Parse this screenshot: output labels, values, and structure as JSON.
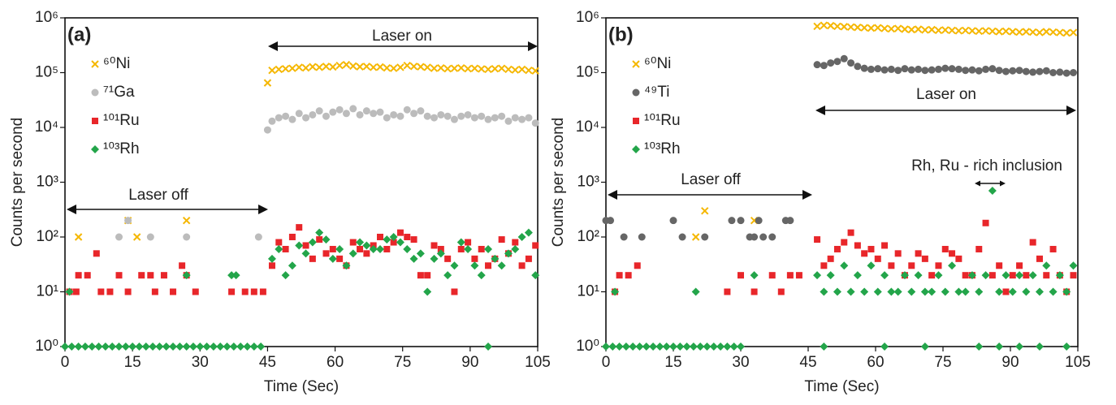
{
  "chart_data": [
    {
      "type": "scatter",
      "panel_label": "(a)",
      "xlabel": "Time (Sec)",
      "ylabel": "Counts per second",
      "annotations": [
        "Laser on",
        "Laser off"
      ],
      "xlim": [
        0,
        105
      ],
      "xticks": [
        0,
        15,
        30,
        45,
        60,
        75,
        90,
        105
      ],
      "ylim": [
        1,
        1000000
      ],
      "yscale": "log",
      "legend": "upper left",
      "yticks": [
        {
          "value": 1,
          "label": "10⁰"
        },
        {
          "value": 10,
          "label": "10¹"
        },
        {
          "value": 100,
          "label": "10²"
        },
        {
          "value": 1000,
          "label": "10³"
        },
        {
          "value": 10000,
          "label": "10⁴"
        },
        {
          "value": 100000,
          "label": "10⁵"
        },
        {
          "value": 1000000,
          "label": "10⁶"
        }
      ],
      "series": [
        {
          "name": "⁶⁰Ni",
          "color": "#f5b700",
          "marker": "x",
          "x": [
            3,
            14,
            16,
            27,
            45,
            46,
            47.5,
            49,
            50.5,
            52,
            53.5,
            55,
            56.5,
            58,
            59.5,
            61,
            62.5,
            64,
            65.5,
            67,
            68.5,
            70,
            71.5,
            73,
            74.5,
            76,
            77.5,
            79,
            80.5,
            82,
            83.5,
            85,
            86.5,
            88,
            89.5,
            91,
            92.5,
            94,
            95.5,
            97,
            98.5,
            100,
            101.5,
            103,
            104.5
          ],
          "values": [
            100,
            200,
            100,
            200,
            65000,
            110000,
            115000,
            118000,
            120000,
            125000,
            122000,
            128000,
            125000,
            130000,
            127000,
            135000,
            140000,
            132000,
            128000,
            130000,
            125000,
            127000,
            122000,
            120000,
            125000,
            135000,
            130000,
            128000,
            125000,
            120000,
            122000,
            118000,
            120000,
            122000,
            118000,
            120000,
            117000,
            115000,
            118000,
            120000,
            115000,
            112000,
            115000,
            110000,
            108000
          ]
        },
        {
          "name": "⁷¹Ga",
          "color": "#bcbcbc",
          "marker": "circle",
          "x": [
            12,
            14,
            19,
            27,
            43,
            45,
            46,
            47.5,
            49,
            50.5,
            52,
            53.5,
            55,
            56.5,
            58,
            59.5,
            61,
            62.5,
            64,
            65.5,
            67,
            68.5,
            70,
            71.5,
            73,
            74.5,
            76,
            77.5,
            79,
            80.5,
            82,
            83.5,
            85,
            86.5,
            88,
            89.5,
            91,
            92.5,
            94,
            95.5,
            97,
            98.5,
            100,
            101.5,
            103,
            104.5
          ],
          "values": [
            100,
            200,
            100,
            100,
            100,
            9000,
            13000,
            15000,
            16000,
            14000,
            18000,
            15000,
            17000,
            20000,
            16000,
            19000,
            21000,
            18000,
            22000,
            17000,
            20000,
            18000,
            19000,
            15000,
            17000,
            16000,
            21000,
            18000,
            20000,
            16000,
            15000,
            17000,
            16000,
            14000,
            16000,
            17000,
            15000,
            16000,
            14000,
            15000,
            16000,
            13000,
            15000,
            14000,
            15000,
            12000
          ]
        },
        {
          "name": "¹⁰¹Ru",
          "color": "#e8262a",
          "marker": "square",
          "x": [
            1,
            2.5,
            3,
            5,
            7,
            8,
            10,
            12,
            14,
            17,
            19,
            20,
            22,
            24,
            26,
            27,
            29,
            37,
            40,
            42,
            44,
            46,
            47.5,
            49,
            50.5,
            52,
            53.5,
            55,
            56.5,
            58,
            59.5,
            61,
            62.5,
            64,
            65.5,
            67,
            68.5,
            70,
            71.5,
            73,
            74.5,
            76,
            77.5,
            79,
            80.5,
            82,
            83.5,
            85,
            86.5,
            88,
            89.5,
            91,
            92.5,
            94,
            95.5,
            97,
            98.5,
            100,
            101.5,
            103,
            104.5
          ],
          "values": [
            10,
            10,
            20,
            20,
            50,
            10,
            10,
            20,
            10,
            20,
            20,
            10,
            20,
            10,
            30,
            20,
            10,
            10,
            10,
            10,
            10,
            30,
            80,
            60,
            100,
            150,
            70,
            40,
            90,
            50,
            60,
            40,
            30,
            80,
            60,
            50,
            70,
            100,
            60,
            80,
            120,
            100,
            90,
            20,
            20,
            70,
            60,
            40,
            10,
            60,
            80,
            40,
            60,
            30,
            40,
            90,
            50,
            80,
            30,
            40,
            70
          ]
        },
        {
          "name": "¹⁰³Rh",
          "color": "#23a54a",
          "marker": "diamond",
          "x": [
            0,
            1.5,
            3,
            4.5,
            6,
            7.5,
            9,
            10.5,
            12,
            13.5,
            15,
            16.5,
            18,
            19.5,
            21,
            22.5,
            24,
            25.5,
            27,
            28.5,
            30,
            31.5,
            33,
            34.5,
            36,
            37.5,
            39,
            40.5,
            42,
            43.5,
            1,
            27,
            37,
            38,
            46,
            47.5,
            49,
            50.5,
            52,
            53.5,
            55,
            56.5,
            58,
            59.5,
            61,
            62.5,
            64,
            65.5,
            67,
            68.5,
            70,
            71.5,
            73,
            74.5,
            76,
            77.5,
            79,
            80.5,
            82,
            83.5,
            85,
            86.5,
            88,
            89.5,
            91,
            92.5,
            94,
            95.5,
            97,
            98.5,
            100,
            101.5,
            103,
            104.5,
            94
          ],
          "values": [
            1,
            1,
            1,
            1,
            1,
            1,
            1,
            1,
            1,
            1,
            1,
            1,
            1,
            1,
            1,
            1,
            1,
            1,
            1,
            1,
            1,
            1,
            1,
            1,
            1,
            1,
            1,
            1,
            1,
            1,
            10,
            20,
            20,
            20,
            40,
            60,
            20,
            30,
            70,
            50,
            80,
            120,
            90,
            40,
            60,
            30,
            50,
            80,
            70,
            60,
            60,
            90,
            100,
            80,
            60,
            40,
            50,
            10,
            40,
            50,
            20,
            30,
            80,
            60,
            30,
            20,
            60,
            40,
            30,
            50,
            60,
            100,
            120,
            20,
            1
          ]
        }
      ]
    },
    {
      "type": "scatter",
      "panel_label": "(b)",
      "xlabel": "Time (Sec)",
      "ylabel": "Counts per second",
      "annotations": [
        "Laser on",
        "Laser off",
        "Rh, Ru - rich inclusion"
      ],
      "xlim": [
        0,
        105
      ],
      "xticks": [
        0,
        15,
        30,
        45,
        60,
        75,
        90,
        105
      ],
      "ylim": [
        1,
        1000000
      ],
      "yscale": "log",
      "legend": "upper left",
      "yticks": [
        {
          "value": 1,
          "label": "10⁰"
        },
        {
          "value": 10,
          "label": "10¹"
        },
        {
          "value": 100,
          "label": "10²"
        },
        {
          "value": 1000,
          "label": "10³"
        },
        {
          "value": 10000,
          "label": "10⁴"
        },
        {
          "value": 100000,
          "label": "10⁵"
        },
        {
          "value": 1000000,
          "label": "10⁶"
        }
      ],
      "series": [
        {
          "name": "⁶⁰Ni",
          "color": "#f5b700",
          "marker": "x",
          "x": [
            20,
            22,
            33,
            47,
            48.5,
            50,
            51.5,
            53,
            54.5,
            56,
            57.5,
            59,
            60.5,
            62,
            63.5,
            65,
            66.5,
            68,
            69.5,
            71,
            72.5,
            74,
            75.5,
            77,
            78.5,
            80,
            81.5,
            83,
            84.5,
            86,
            87.5,
            89,
            90.5,
            92,
            93.5,
            95,
            96.5,
            98,
            99.5,
            101,
            102.5,
            104
          ],
          "values": [
            100,
            300,
            200,
            700000,
            730000,
            720000,
            700000,
            690000,
            680000,
            670000,
            660000,
            650000,
            660000,
            640000,
            630000,
            640000,
            620000,
            610000,
            620000,
            600000,
            610000,
            590000,
            600000,
            590000,
            580000,
            590000,
            580000,
            570000,
            580000,
            570000,
            560000,
            570000,
            560000,
            550000,
            560000,
            550000,
            540000,
            560000,
            550000,
            540000,
            530000,
            540000
          ]
        },
        {
          "name": "⁴⁹Ti",
          "color": "#666666",
          "marker": "circle",
          "x": [
            0,
            1,
            4,
            8,
            15,
            17,
            22,
            28,
            30,
            32,
            33,
            34,
            35,
            37,
            40,
            41,
            47,
            48.5,
            50,
            51.5,
            53,
            54.5,
            56,
            57.5,
            59,
            60.5,
            62,
            63.5,
            65,
            66.5,
            68,
            69.5,
            71,
            72.5,
            74,
            75.5,
            77,
            78.5,
            80,
            81.5,
            83,
            84.5,
            86,
            87.5,
            89,
            90.5,
            92,
            93.5,
            95,
            96.5,
            98,
            99.5,
            101,
            102.5,
            104
          ],
          "values": [
            200,
            200,
            100,
            100,
            200,
            100,
            100,
            200,
            200,
            100,
            100,
            200,
            100,
            100,
            200,
            200,
            140000,
            135000,
            150000,
            160000,
            180000,
            150000,
            130000,
            120000,
            115000,
            118000,
            112000,
            115000,
            110000,
            118000,
            112000,
            115000,
            110000,
            112000,
            115000,
            120000,
            118000,
            115000,
            110000,
            112000,
            108000,
            115000,
            118000,
            110000,
            105000,
            108000,
            110000,
            105000,
            102000,
            105000,
            108000,
            100000,
            102000,
            98000,
            100000
          ]
        },
        {
          "name": "¹⁰¹Ru",
          "color": "#e8262a",
          "marker": "square",
          "x": [
            2,
            3,
            5,
            7,
            27,
            30,
            33,
            37,
            39,
            41,
            43,
            47,
            48.5,
            50,
            51.5,
            53,
            54.5,
            56,
            57.5,
            59,
            60.5,
            62,
            63.5,
            65,
            66.5,
            68,
            69.5,
            71,
            72.5,
            74,
            75.5,
            77,
            78.5,
            80,
            81.5,
            83,
            84.5,
            86,
            87.5,
            89,
            90.5,
            92,
            93.5,
            95,
            96.5,
            98,
            99.5,
            101,
            102.5,
            104
          ],
          "values": [
            10,
            20,
            20,
            30,
            10,
            20,
            10,
            20,
            10,
            20,
            20,
            90,
            30,
            40,
            60,
            80,
            120,
            70,
            50,
            60,
            40,
            70,
            30,
            50,
            20,
            30,
            50,
            40,
            20,
            30,
            60,
            50,
            40,
            20,
            20,
            60,
            180,
            20,
            30,
            10,
            20,
            30,
            20,
            80,
            40,
            20,
            60,
            20,
            10,
            20
          ]
        },
        {
          "name": "¹⁰³Rh",
          "color": "#23a54a",
          "marker": "diamond",
          "x": [
            0,
            1.5,
            3,
            4.5,
            6,
            7.5,
            9,
            10.5,
            12,
            13.5,
            15,
            16.5,
            18,
            19.5,
            21,
            22.5,
            24,
            25.5,
            27,
            28.5,
            30,
            2,
            20,
            33,
            48.5,
            62,
            71,
            83,
            87.5,
            92,
            96.5,
            102.5,
            47,
            48.5,
            50,
            51.5,
            53,
            54.5,
            56,
            57.5,
            59,
            60.5,
            62,
            63.5,
            65,
            66.5,
            68,
            69.5,
            71,
            72.5,
            74,
            75.5,
            77,
            78.5,
            80,
            81.5,
            83,
            84.5,
            86,
            87.5,
            89,
            90.5,
            92,
            93.5,
            95,
            96.5,
            98,
            99.5,
            101,
            102.5,
            104
          ],
          "values": [
            1,
            1,
            1,
            1,
            1,
            1,
            1,
            1,
            1,
            1,
            1,
            1,
            1,
            1,
            1,
            1,
            1,
            1,
            1,
            1,
            1,
            10,
            10,
            20,
            1,
            1,
            1,
            1,
            1,
            1,
            1,
            1,
            20,
            10,
            20,
            10,
            30,
            10,
            20,
            10,
            30,
            10,
            20,
            10,
            10,
            20,
            10,
            20,
            10,
            10,
            20,
            10,
            30,
            10,
            10,
            20,
            10,
            20,
            700,
            10,
            20,
            10,
            20,
            10,
            20,
            10,
            30,
            10,
            20,
            10,
            30
          ]
        }
      ]
    }
  ]
}
